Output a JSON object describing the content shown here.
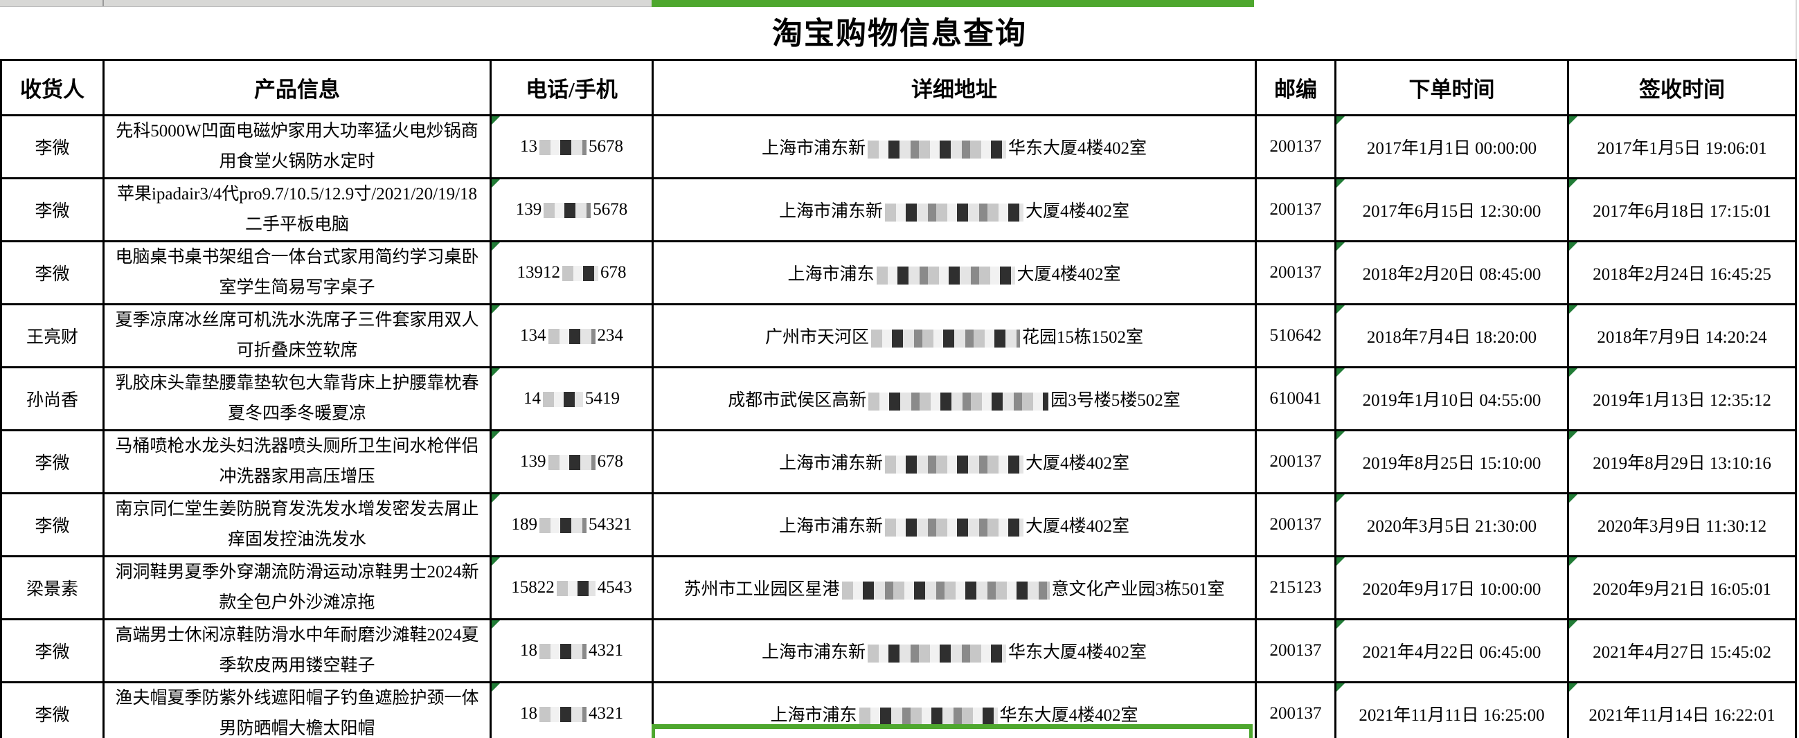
{
  "page": {
    "title": "淘宝购物信息查询"
  },
  "colors": {
    "selection_green": "#4ea72e",
    "triangle_green": "#217c36"
  },
  "table": {
    "columns": [
      {
        "key": "name",
        "label": "收货人"
      },
      {
        "key": "product",
        "label": "产品信息"
      },
      {
        "key": "phone",
        "label": "电话/手机"
      },
      {
        "key": "addr",
        "label": "详细地址"
      },
      {
        "key": "zip",
        "label": "邮编"
      },
      {
        "key": "order_time",
        "label": "下单时间"
      },
      {
        "key": "sign_time",
        "label": "签收时间"
      }
    ],
    "rows": [
      {
        "name": "李微",
        "product": "先科5000W凹面电磁炉家用大功率猛火电炒锅商用食堂火锅防水定时",
        "phone_prefix": "13",
        "phone_suffix": "5678",
        "addr_prefix": "上海市浦东新",
        "addr_suffix": "华东大厦4楼402室",
        "zip": "200137",
        "order_time": "2017年1月1日 00:00:00",
        "sign_time": "2017年1月5日 19:06:01"
      },
      {
        "name": "李微",
        "product": "苹果ipadair3/4代pro9.7/10.5/12.9寸/2021/20/19/18二手平板电脑",
        "phone_prefix": "139",
        "phone_suffix": "5678",
        "addr_prefix": "上海市浦东新",
        "addr_suffix": "大厦4楼402室",
        "zip": "200137",
        "order_time": "2017年6月15日 12:30:00",
        "sign_time": "2017年6月18日 17:15:01"
      },
      {
        "name": "李微",
        "product": "电脑桌书桌书架组合一体台式家用简约学习桌卧室学生简易写字桌子",
        "phone_prefix": "13912",
        "phone_suffix": "678",
        "addr_prefix": "上海市浦东",
        "addr_suffix": "大厦4楼402室",
        "zip": "200137",
        "order_time": "2018年2月20日 08:45:00",
        "sign_time": "2018年2月24日 16:45:25"
      },
      {
        "name": "王亮财",
        "product": "夏季凉席冰丝席可机洗水洗席子三件套家用双人可折叠床笠软席",
        "phone_prefix": "134",
        "phone_suffix": "234",
        "addr_prefix": "广州市天河区",
        "addr_suffix": "花园15栋1502室",
        "zip": "510642",
        "order_time": "2018年7月4日 18:20:00",
        "sign_time": "2018年7月9日 14:20:24"
      },
      {
        "name": "孙尚香",
        "product": "乳胶床头靠垫腰靠垫软包大靠背床上护腰靠枕春夏冬四季冬暖夏凉",
        "phone_prefix": "14",
        "phone_suffix": "5419",
        "addr_prefix": "成都市武侯区高新",
        "addr_suffix": "园3号楼5楼502室",
        "zip": "610041",
        "order_time": "2019年1月10日 04:55:00",
        "sign_time": "2019年1月13日 12:35:12"
      },
      {
        "name": "李微",
        "product": "马桶喷枪水龙头妇洗器喷头厕所卫生间水枪伴侣冲洗器家用高压增压",
        "phone_prefix": "139",
        "phone_suffix": "678",
        "addr_prefix": "上海市浦东新",
        "addr_suffix": "大厦4楼402室",
        "zip": "200137",
        "order_time": "2019年8月25日 15:10:00",
        "sign_time": "2019年8月29日 13:10:16"
      },
      {
        "name": "李微",
        "product": "南京同仁堂生姜防脱育发洗发水增发密发去屑止痒固发控油洗发水",
        "phone_prefix": "189",
        "phone_suffix": "54321",
        "addr_prefix": "上海市浦东新",
        "addr_suffix": "大厦4楼402室",
        "zip": "200137",
        "order_time": "2020年3月5日 21:30:00",
        "sign_time": "2020年3月9日 11:30:12"
      },
      {
        "name": "梁景素",
        "product": "洞洞鞋男夏季外穿潮流防滑运动凉鞋男士2024新款全包户外沙滩凉拖",
        "phone_prefix": "15822",
        "phone_suffix": "4543",
        "addr_prefix": "苏州市工业园区星港",
        "addr_suffix": "意文化产业园3栋501室",
        "zip": "215123",
        "order_time": "2020年9月17日 10:00:00",
        "sign_time": "2020年9月21日 16:05:01"
      },
      {
        "name": "李微",
        "product": "高端男士休闲凉鞋防滑水中年耐磨沙滩鞋2024夏季软皮两用镂空鞋子",
        "phone_prefix": "18",
        "phone_suffix": "4321",
        "addr_prefix": "上海市浦东新",
        "addr_suffix": "华东大厦4楼402室",
        "zip": "200137",
        "order_time": "2021年4月22日 06:45:00",
        "sign_time": "2021年4月27日 15:45:02"
      },
      {
        "name": "李微",
        "product": "渔夫帽夏季防紫外线遮阳帽子钓鱼遮脸护颈一体男防晒帽大檐太阳帽",
        "phone_prefix": "18",
        "phone_suffix": "4321",
        "addr_prefix": "上海市浦东",
        "addr_suffix": "华东大厦4楼402室",
        "zip": "200137",
        "order_time": "2021年11月11日 16:25:00",
        "sign_time": "2021年11月14日 16:22:01"
      }
    ]
  }
}
